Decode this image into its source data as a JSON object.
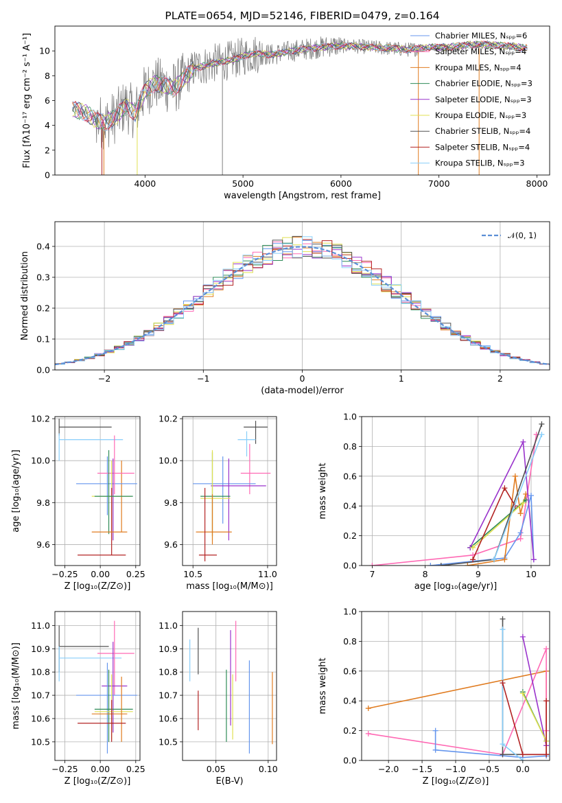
{
  "chart_data": [
    {
      "id": "spectrum",
      "type": "line",
      "title": "PLATE=0654, MJD=52146, FIBERID=0479, z=0.164",
      "xlabel": "wavelength [Angstrom, rest frame]",
      "ylabel": "Flux [fλ10⁻¹⁷ erg cm⁻² s⁻¹ A⁻¹]",
      "xlim": [
        3080,
        8130
      ],
      "ylim": [
        0,
        12
      ],
      "xticks": [
        "4000",
        "5000",
        "6000",
        "7000",
        "8000"
      ],
      "yticks": [
        "0",
        "2",
        "4",
        "6",
        "8",
        "10"
      ],
      "legend_position": "right",
      "legend": [
        {
          "label": "Chabrier MILES, Nₛₚₚ=6",
          "color": "#6495ed"
        },
        {
          "label": "Salpeter MILES, Nₛₚₚ=4",
          "color": "#ff69b4"
        },
        {
          "label": "Kroupa MILES, Nₛₚₚ=4",
          "color": "#e07b1f"
        },
        {
          "label": "Chabrier ELODIE, Nₛₚₚ=3",
          "color": "#2e8b57"
        },
        {
          "label": "Salpeter ELODIE, Nₛₚₚ=3",
          "color": "#9932cc"
        },
        {
          "label": "Kroupa ELODIE, Nₛₚₚ=3",
          "color": "#e0e050"
        },
        {
          "label": "Chabrier STELIB, Nₛₚₚ=4",
          "color": "#505050"
        },
        {
          "label": "Salpeter STELIB, Nₛₚₚ=4",
          "color": "#b22222"
        },
        {
          "label": "Kroupa STELIB, Nₛₚₚ=3",
          "color": "#87cefa"
        }
      ],
      "continuum": [
        [
          3260,
          5.3
        ],
        [
          3400,
          5.0
        ],
        [
          3500,
          4.4
        ],
        [
          3600,
          4.2
        ],
        [
          3700,
          4.7
        ],
        [
          3800,
          5.6
        ],
        [
          3900,
          5.0
        ],
        [
          4000,
          6.8
        ],
        [
          4100,
          7.4
        ],
        [
          4300,
          7.0
        ],
        [
          4500,
          8.6
        ],
        [
          4700,
          9.0
        ],
        [
          4900,
          9.3
        ],
        [
          5100,
          9.8
        ],
        [
          5300,
          9.7
        ],
        [
          5500,
          10.0
        ],
        [
          5700,
          10.2
        ],
        [
          5900,
          10.4
        ],
        [
          6100,
          10.4
        ],
        [
          6300,
          10.3
        ],
        [
          6500,
          10.2
        ],
        [
          6700,
          10.1
        ],
        [
          6900,
          10.3
        ],
        [
          7100,
          10.3
        ],
        [
          7300,
          10.5
        ],
        [
          7500,
          10.5
        ],
        [
          7700,
          10.4
        ],
        [
          7900,
          10.2
        ]
      ]
    },
    {
      "id": "residuals",
      "type": "line",
      "xlabel": "(data-model)/error",
      "ylabel": "Normed distribution",
      "xlim": [
        -2.5,
        2.5
      ],
      "ylim": [
        0,
        0.48
      ],
      "xticks": [
        "−2",
        "−1",
        "0",
        "1",
        "2"
      ],
      "yticks": [
        "0.0",
        "0.1",
        "0.2",
        "0.3",
        "0.4"
      ],
      "grid": true,
      "legend_position": "top-right",
      "legend": [
        {
          "label": "𝒩(0, 1)",
          "color": "#5b8ed6"
        }
      ],
      "bin_width": 0.1
    },
    {
      "id": "age-vs-Z",
      "type": "scatter",
      "xlabel": "Z [log₁₀(Z/Z⊙)]",
      "ylabel": "age  [log₁₀(age/yr)]",
      "xlim": [
        -0.32,
        0.28
      ],
      "ylim": [
        9.5,
        10.21
      ],
      "xticks": [
        "−0.25",
        "0.00",
        "0.25"
      ],
      "yticks": [
        "9.6",
        "9.8",
        "10.0",
        "10.2"
      ],
      "grid": true,
      "points": [
        {
          "color": "#505050",
          "x": -0.29,
          "xmin": -0.29,
          "xmax": 0.08,
          "y": 10.16,
          "ymin": 10.12,
          "ymax": 10.2
        },
        {
          "color": "#87cefa",
          "x": -0.29,
          "xmin": -0.29,
          "xmax": 0.16,
          "y": 10.1,
          "ymin": 10.0,
          "ymax": 10.13
        },
        {
          "color": "#e07b1f",
          "x": 0.15,
          "xmin": 0.15,
          "xmax": 0.15,
          "y": 9.88,
          "ymin": 9.66,
          "ymax": 10.0
        },
        {
          "color": "#6495ed",
          "x": 0.05,
          "xmin": -0.17,
          "xmax": 0.26,
          "y": 9.89,
          "ymin": 9.74,
          "ymax": 10.02
        },
        {
          "color": "#ff69b4",
          "x": 0.1,
          "xmin": -0.02,
          "xmax": 0.24,
          "y": 9.94,
          "ymin": 9.84,
          "ymax": 10.12
        },
        {
          "color": "#9932cc",
          "x": 0.09,
          "xmin": 0.09,
          "xmax": 0.09,
          "y": 9.88,
          "ymin": 9.62,
          "ymax": 10.01
        },
        {
          "color": "#2e8b57",
          "x": 0.06,
          "xmin": 0.06,
          "xmax": 0.06,
          "y": 9.83,
          "ymin": 9.65,
          "ymax": 10.05
        },
        {
          "color": "#e0e050",
          "x": 0.08,
          "xmin": -0.06,
          "xmax": 0.22,
          "y": 9.83,
          "ymin": 9.66,
          "ymax": 10.0
        },
        {
          "color": "#b22222",
          "x": 0.08,
          "xmin": -0.16,
          "xmax": 0.18,
          "y": 9.55,
          "ymin": 9.55,
          "ymax": 9.87
        },
        {
          "color": "#e07b1f",
          "x": 0.09,
          "xmin": -0.06,
          "xmax": 0.19,
          "y": 9.66,
          "ymin": 9.66,
          "ymax": 9.66
        },
        {
          "color": "#2e8b57",
          "x": 0.08,
          "xmin": -0.04,
          "xmax": 0.23,
          "y": 9.83,
          "ymin": 9.83,
          "ymax": 9.83
        }
      ]
    },
    {
      "id": "age-vs-mass",
      "type": "scatter",
      "xlabel": "mass [log₁₀(M/M⊙)]",
      "ylabel": "",
      "xlim": [
        10.43,
        11.06
      ],
      "ylim": [
        9.5,
        10.21
      ],
      "xticks": [
        "10.5",
        "11.0"
      ],
      "yticks": [
        "9.6",
        "9.8",
        "10.0",
        "10.2"
      ],
      "grid": true,
      "points": [
        {
          "color": "#505050",
          "x": 10.92,
          "xmin": 10.84,
          "xmax": 11.0,
          "y": 10.16,
          "ymin": 10.08,
          "ymax": 10.19
        },
        {
          "color": "#87cefa",
          "x": 10.86,
          "xmin": 10.8,
          "xmax": 10.92,
          "y": 10.1,
          "ymin": 10.02,
          "ymax": 10.14
        },
        {
          "color": "#ff69b4",
          "x": 10.88,
          "xmin": 10.82,
          "xmax": 11.02,
          "y": 9.94,
          "ymin": 9.84,
          "ymax": 10.08
        },
        {
          "color": "#6495ed",
          "x": 10.7,
          "xmin": 10.5,
          "xmax": 10.92,
          "y": 9.89,
          "ymin": 9.7,
          "ymax": 10.02
        },
        {
          "color": "#9932cc",
          "x": 10.74,
          "xmin": 10.62,
          "xmax": 10.99,
          "y": 9.88,
          "ymin": 9.62,
          "ymax": 10.01
        },
        {
          "color": "#2e8b57",
          "x": 10.63,
          "xmin": 10.55,
          "xmax": 10.75,
          "y": 9.83,
          "ymin": 9.64,
          "ymax": 10.04
        },
        {
          "color": "#e0e050",
          "x": 10.63,
          "xmin": 10.55,
          "xmax": 10.75,
          "y": 9.82,
          "ymin": 9.62,
          "ymax": 10.05
        },
        {
          "color": "#e07b1f",
          "x": 10.63,
          "xmin": 10.52,
          "xmax": 10.76,
          "y": 9.66,
          "ymin": 9.6,
          "ymax": 9.84
        },
        {
          "color": "#b22222",
          "x": 10.58,
          "xmin": 10.54,
          "xmax": 10.66,
          "y": 9.55,
          "ymin": 9.52,
          "ymax": 9.87
        }
      ]
    },
    {
      "id": "massweight-vs-age",
      "type": "line",
      "xlabel": "age  [log₁₀(age/yr)]",
      "ylabel": "mass weight",
      "xlim": [
        6.8,
        10.35
      ],
      "ylim": [
        0,
        1
      ],
      "xticks": [
        "7",
        "8",
        "9",
        "10"
      ],
      "yticks": [
        "0.0",
        "0.2",
        "0.4",
        "0.6",
        "0.8",
        "1.0"
      ],
      "grid": true,
      "series": [
        {
          "color": "#ff69b4",
          "points": [
            [
              7.0,
              0.0
            ],
            [
              8.9,
              0.07
            ],
            [
              9.8,
              0.18
            ],
            [
              10.1,
              0.88
            ]
          ]
        },
        {
          "color": "#6495ed",
          "points": [
            [
              8.1,
              0.0
            ],
            [
              9.5,
              0.05
            ],
            [
              9.8,
              0.22
            ],
            [
              10.0,
              0.47
            ],
            [
              10.05,
              0.04
            ]
          ]
        },
        {
          "color": "#e07b1f",
          "points": [
            [
              8.8,
              0.0
            ],
            [
              9.5,
              0.04
            ],
            [
              9.7,
              0.6
            ],
            [
              9.8,
              0.35
            ],
            [
              9.9,
              0.48
            ]
          ]
        },
        {
          "color": "#2e8b57",
          "points": [
            [
              8.85,
              0.12
            ],
            [
              9.9,
              0.44
            ]
          ]
        },
        {
          "color": "#9932cc",
          "points": [
            [
              8.85,
              0.12
            ],
            [
              9.85,
              0.83
            ],
            [
              10.05,
              0.04
            ]
          ]
        },
        {
          "color": "#e0e050",
          "points": [
            [
              8.9,
              0.12
            ],
            [
              9.85,
              0.42
            ]
          ]
        },
        {
          "color": "#505050",
          "points": [
            [
              8.3,
              0.0
            ],
            [
              9.3,
              0.04
            ],
            [
              10.2,
              0.95
            ]
          ]
        },
        {
          "color": "#b22222",
          "points": [
            [
              8.9,
              0.04
            ],
            [
              9.5,
              0.52
            ],
            [
              9.7,
              0.4
            ]
          ]
        },
        {
          "color": "#87cefa",
          "points": [
            [
              9.3,
              0.04
            ],
            [
              10.2,
              0.88
            ]
          ]
        }
      ]
    },
    {
      "id": "mass-vs-Z",
      "type": "scatter",
      "xlabel": "Z [log₁₀(Z/Z⊙)]",
      "ylabel": "mass [log₁₀(M/M⊙)]",
      "xlim": [
        -0.32,
        0.28
      ],
      "ylim": [
        10.42,
        11.06
      ],
      "xticks": [
        "−0.25",
        "0.00",
        "0.25"
      ],
      "yticks": [
        "10.5",
        "10.6",
        "10.7",
        "10.8",
        "10.9",
        "11.0"
      ],
      "grid": true,
      "points": [
        {
          "color": "#505050",
          "x": -0.29,
          "xmin": -0.29,
          "xmax": 0.06,
          "y": 10.91,
          "ymin": 10.8,
          "ymax": 11.0
        },
        {
          "color": "#87cefa",
          "x": -0.29,
          "xmin": -0.29,
          "xmax": 0.15,
          "y": 10.86,
          "ymin": 10.76,
          "ymax": 10.91
        },
        {
          "color": "#ff69b4",
          "x": 0.1,
          "xmin": -0.02,
          "xmax": 0.24,
          "y": 10.88,
          "ymin": 10.7,
          "ymax": 11.02
        },
        {
          "color": "#9932cc",
          "x": 0.09,
          "xmin": 0.01,
          "xmax": 0.19,
          "y": 10.74,
          "ymin": 10.54,
          "ymax": 10.93
        },
        {
          "color": "#6495ed",
          "x": 0.05,
          "xmin": -0.17,
          "xmax": 0.26,
          "y": 10.7,
          "ymin": 10.45,
          "ymax": 10.84
        },
        {
          "color": "#2e8b57",
          "x": 0.06,
          "xmin": -0.04,
          "xmax": 0.23,
          "y": 10.64,
          "ymin": 10.5,
          "ymax": 10.81
        },
        {
          "color": "#e0e050",
          "x": 0.08,
          "xmin": -0.04,
          "xmax": 0.23,
          "y": 10.63,
          "ymin": 10.51,
          "ymax": 10.79
        },
        {
          "color": "#e07b1f",
          "x": 0.15,
          "xmin": -0.06,
          "xmax": 0.19,
          "y": 10.62,
          "ymin": 10.5,
          "ymax": 10.78
        },
        {
          "color": "#b22222",
          "x": 0.08,
          "xmin": -0.16,
          "xmax": 0.18,
          "y": 10.58,
          "ymin": 10.5,
          "ymax": 10.68
        }
      ]
    },
    {
      "id": "mass-vs-ebv",
      "type": "scatter",
      "xlabel": "E(B-V)",
      "ylabel": "",
      "xlim": [
        0.018,
        0.108
      ],
      "ylim": [
        10.42,
        11.06
      ],
      "xticks": [
        "0.05",
        "0.10"
      ],
      "yticks": [
        "10.5",
        "10.6",
        "10.7",
        "10.8",
        "10.9",
        "11.0"
      ],
      "grid": true,
      "bars": [
        {
          "color": "#87cefa",
          "x": 0.025,
          "ymin": 10.76,
          "ymax": 10.94
        },
        {
          "color": "#505050",
          "x": 0.033,
          "ymin": 10.79,
          "ymax": 10.99
        },
        {
          "color": "#b22222",
          "x": 0.033,
          "ymin": 10.55,
          "ymax": 10.72
        },
        {
          "color": "#2e8b57",
          "x": 0.06,
          "ymin": 10.5,
          "ymax": 10.81
        },
        {
          "color": "#9932cc",
          "x": 0.064,
          "ymin": 10.57,
          "ymax": 10.98
        },
        {
          "color": "#e0e050",
          "x": 0.066,
          "ymin": 10.51,
          "ymax": 10.79
        },
        {
          "color": "#ff69b4",
          "x": 0.069,
          "ymin": 10.76,
          "ymax": 11.02
        },
        {
          "color": "#6495ed",
          "x": 0.082,
          "ymin": 10.45,
          "ymax": 10.85
        },
        {
          "color": "#e07b1f",
          "x": 0.104,
          "ymin": 10.49,
          "ymax": 10.8
        }
      ]
    },
    {
      "id": "massweight-vs-Z",
      "type": "line",
      "xlabel": "Z [log₁₀(Z/Z⊙)]",
      "ylabel": "mass weight",
      "xlim": [
        -2.4,
        0.4
      ],
      "ylim": [
        0,
        1
      ],
      "xticks": [
        "−2.0",
        "−1.5",
        "−1.0",
        "−0.5",
        "0.0"
      ],
      "yticks": [
        "0.0",
        "0.2",
        "0.4",
        "0.6",
        "0.8",
        "1.0"
      ],
      "grid": true,
      "series": [
        {
          "color": "#e07b1f",
          "points": [
            [
              -2.3,
              0.35
            ],
            [
              0.35,
              0.6
            ],
            [
              0.35,
              0.04
            ]
          ]
        },
        {
          "color": "#ff69b4",
          "points": [
            [
              -2.3,
              0.18
            ],
            [
              -0.3,
              0.04
            ],
            [
              0.35,
              0.75
            ],
            [
              0.35,
              0.2
            ]
          ]
        },
        {
          "color": "#6495ed",
          "points": [
            [
              -1.3,
              0.2
            ],
            [
              -1.3,
              0.07
            ],
            [
              0.0,
              0.02
            ],
            [
              0.35,
              0.03
            ]
          ]
        },
        {
          "color": "#505050",
          "points": [
            [
              -0.3,
              0.95
            ],
            [
              -0.3,
              0.04
            ],
            [
              0.35,
              0.04
            ]
          ]
        },
        {
          "color": "#87cefa",
          "points": [
            [
              -0.3,
              0.88
            ],
            [
              -0.3,
              0.11
            ],
            [
              0.0,
              0.0
            ]
          ]
        },
        {
          "color": "#9932cc",
          "points": [
            [
              0.0,
              0.83
            ],
            [
              0.35,
              0.1
            ]
          ]
        },
        {
          "color": "#2e8b57",
          "points": [
            [
              0.0,
              0.46
            ],
            [
              0.35,
              0.13
            ]
          ]
        },
        {
          "color": "#e0e050",
          "points": [
            [
              0.0,
              0.45
            ],
            [
              0.35,
              0.13
            ]
          ]
        },
        {
          "color": "#b22222",
          "points": [
            [
              -0.3,
              0.52
            ],
            [
              0.0,
              0.04
            ],
            [
              0.35,
              0.04
            ],
            [
              0.35,
              0.4
            ]
          ]
        }
      ]
    }
  ]
}
